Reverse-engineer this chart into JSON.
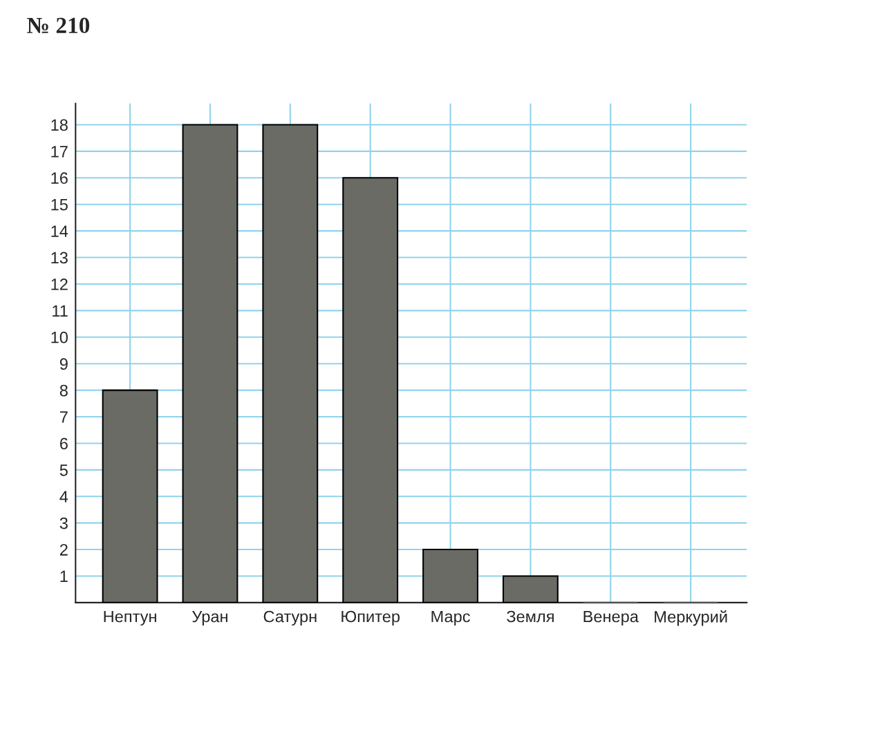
{
  "chart_data": {
    "type": "bar",
    "title": "№ 210",
    "categories": [
      "Нептун",
      "Уран",
      "Сатурн",
      "Юпитер",
      "Марс",
      "Земля",
      "Венера",
      "Меркурий"
    ],
    "values": [
      8,
      18,
      18,
      16,
      2,
      1,
      0,
      0
    ],
    "color": "#6b6b66",
    "ylim": [
      0,
      18.8
    ],
    "yticks": [
      1,
      2,
      3,
      4,
      5,
      6,
      7,
      8,
      9,
      10,
      11,
      12,
      13,
      14,
      15,
      16,
      17,
      18
    ],
    "grid": true
  }
}
